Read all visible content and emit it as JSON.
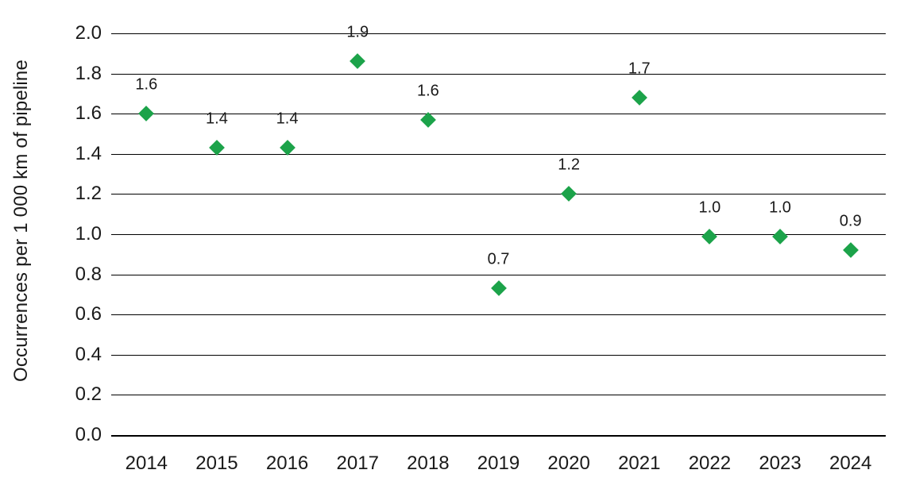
{
  "chart_data": {
    "type": "scatter",
    "title": "",
    "xlabel": "",
    "ylabel": "Occurrences per 1 000 km of pipeline",
    "ylim": [
      0.0,
      2.0
    ],
    "ytick_step": 0.2,
    "yticks": [
      "2.0",
      "1.8",
      "1.6",
      "1.4",
      "1.2",
      "1.0",
      "0.8",
      "0.6",
      "0.4",
      "0.2",
      "0.0"
    ],
    "categories": [
      "2014",
      "2015",
      "2016",
      "2017",
      "2018",
      "2019",
      "2020",
      "2021",
      "2022",
      "2023",
      "2024"
    ],
    "points": [
      {
        "year": "2014",
        "value": 1.6,
        "label": "1.6"
      },
      {
        "year": "2015",
        "value": 1.43,
        "label": "1.4"
      },
      {
        "year": "2016",
        "value": 1.43,
        "label": "1.4"
      },
      {
        "year": "2017",
        "value": 1.86,
        "label": "1.9"
      },
      {
        "year": "2018",
        "value": 1.57,
        "label": "1.6"
      },
      {
        "year": "2019",
        "value": 0.73,
        "label": "0.7"
      },
      {
        "year": "2020",
        "value": 1.2,
        "label": "1.2"
      },
      {
        "year": "2021",
        "value": 1.68,
        "label": "1.7"
      },
      {
        "year": "2022",
        "value": 0.99,
        "label": "1.0"
      },
      {
        "year": "2023",
        "value": 0.99,
        "label": "1.0"
      },
      {
        "year": "2024",
        "value": 0.92,
        "label": "0.9"
      }
    ],
    "marker": {
      "shape": "diamond",
      "color": "#1ca34a"
    },
    "grid": true,
    "gridline_color": "#000000",
    "text_color": "#1a1a1a",
    "legend": "none",
    "background_color": "#ffffff"
  }
}
